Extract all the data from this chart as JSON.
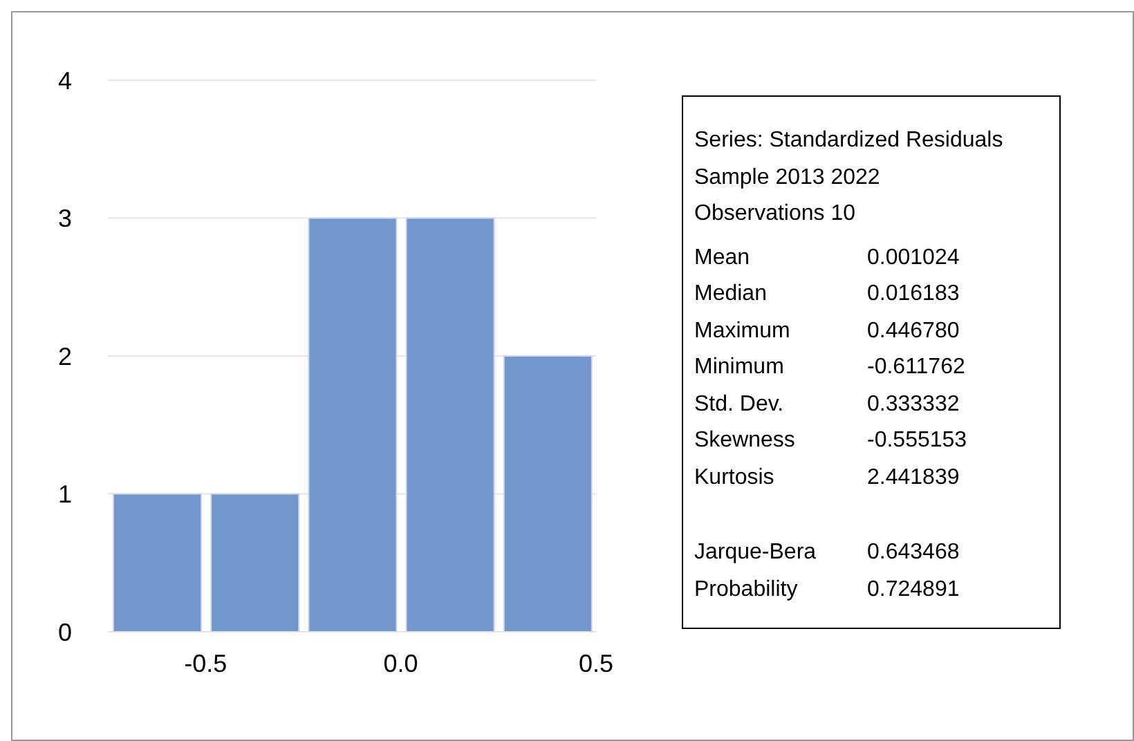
{
  "chart_data": {
    "type": "histogram",
    "bins": [
      -0.75,
      -0.5,
      -0.25,
      0,
      0.25,
      0.5
    ],
    "values": [
      1,
      1,
      3,
      3,
      2
    ],
    "color": "#7396cc",
    "xlim": [
      -0.75,
      0.5
    ],
    "xticks": [
      -0.5,
      {
        "value": 0,
        "label": "0.0"
      },
      0.5
    ],
    "ylim": [
      0,
      4
    ],
    "yticks": [
      0,
      1,
      2,
      3,
      4
    ],
    "grid": "y",
    "legend": false,
    "annotations": [
      "Series: Standardized Residuals",
      "Sample 2013 2022",
      "Observations 10",
      "Mean\t0.001024",
      "Median\t0.016183",
      "Maximum\t0.446780",
      "Minimum\t-0.611762",
      "Std. Dev.\t0.333332",
      "Skewness\t-0.555153",
      "Kurtosis\t2.441839",
      "Jarque-Bera\t0.643468",
      "Probability\t0.724891"
    ]
  }
}
